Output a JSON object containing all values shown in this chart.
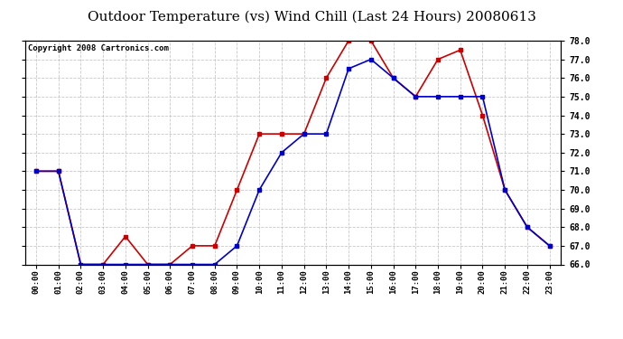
{
  "title": "Outdoor Temperature (vs) Wind Chill (Last 24 Hours) 20080613",
  "copyright": "Copyright 2008 Cartronics.com",
  "hours": [
    0,
    1,
    2,
    3,
    4,
    5,
    6,
    7,
    8,
    9,
    10,
    11,
    12,
    13,
    14,
    15,
    16,
    17,
    18,
    19,
    20,
    21,
    22,
    23
  ],
  "hour_labels": [
    "00:00",
    "01:00",
    "02:00",
    "03:00",
    "04:00",
    "05:00",
    "06:00",
    "07:00",
    "08:00",
    "09:00",
    "10:00",
    "11:00",
    "12:00",
    "13:00",
    "14:00",
    "15:00",
    "16:00",
    "17:00",
    "18:00",
    "19:00",
    "20:00",
    "21:00",
    "22:00",
    "23:00"
  ],
  "temp": [
    71.0,
    71.0,
    66.0,
    66.0,
    67.5,
    66.0,
    66.0,
    67.0,
    67.0,
    70.0,
    73.0,
    73.0,
    73.0,
    76.0,
    78.0,
    78.0,
    76.0,
    75.0,
    77.0,
    77.5,
    74.0,
    70.0,
    68.0,
    67.0
  ],
  "windchill": [
    71.0,
    71.0,
    66.0,
    66.0,
    66.0,
    66.0,
    66.0,
    66.0,
    66.0,
    67.0,
    70.0,
    72.0,
    73.0,
    73.0,
    76.5,
    77.0,
    76.0,
    75.0,
    75.0,
    75.0,
    75.0,
    70.0,
    68.0,
    67.0
  ],
  "temp_color": "#cc0000",
  "windchill_color": "#0000cc",
  "ylim_min": 66.0,
  "ylim_max": 78.0,
  "yticks": [
    66.0,
    67.0,
    68.0,
    69.0,
    70.0,
    71.0,
    72.0,
    73.0,
    74.0,
    75.0,
    76.0,
    77.0,
    78.0
  ],
  "bg_color": "#ffffff",
  "grid_color": "#bbbbbb",
  "title_fontsize": 11,
  "copyright_fontsize": 6.5,
  "marker": "s",
  "marker_size": 3,
  "linewidth": 1.2
}
